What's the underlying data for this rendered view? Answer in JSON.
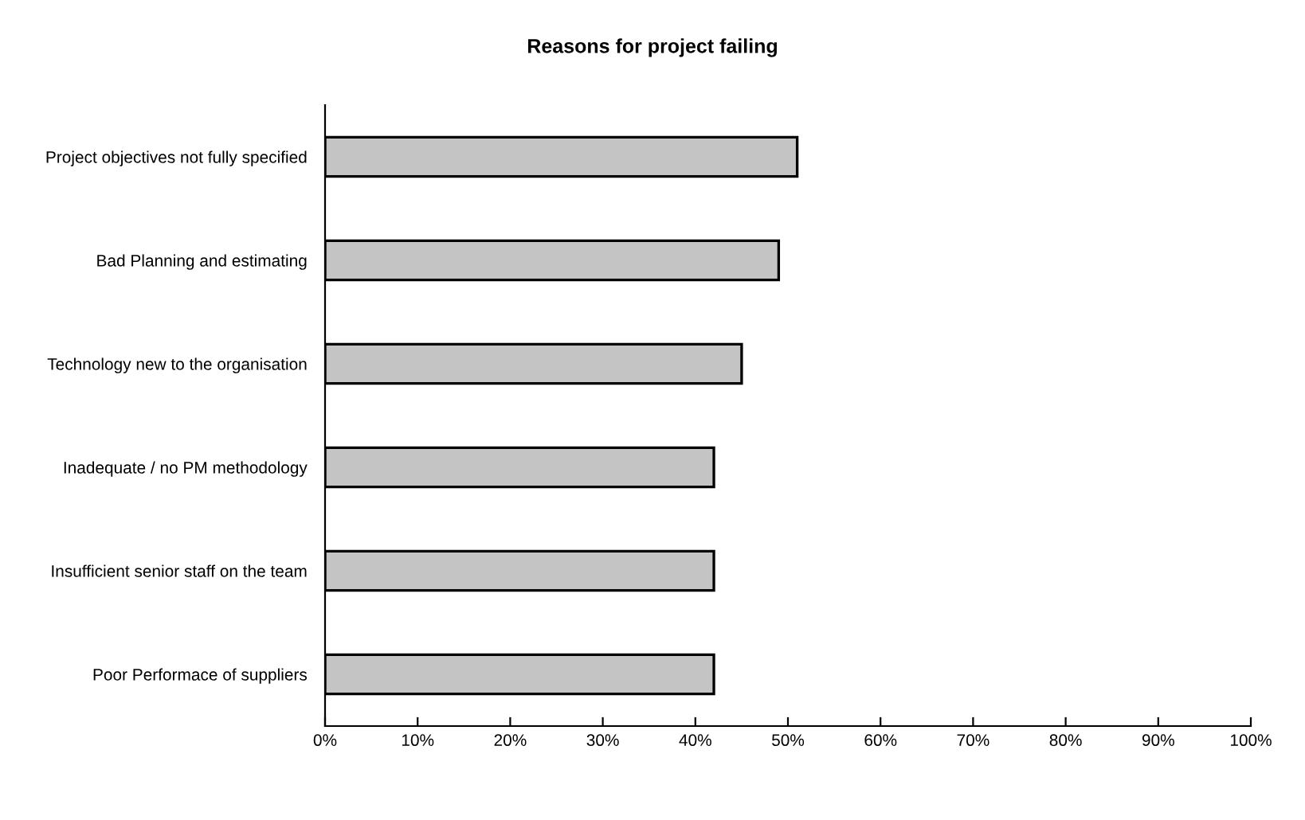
{
  "chart_data": {
    "type": "bar",
    "orientation": "horizontal",
    "title": "Reasons for project failing",
    "categories": [
      "Project objectives not fully specified",
      "Bad Planning and estimating",
      "Technology new to the organisation",
      "Inadequate / no PM methodology",
      "Insufficient senior staff on the team",
      "Poor Performace of suppliers"
    ],
    "values": [
      51,
      49,
      45,
      42,
      42,
      42
    ],
    "color": "#c4c4c4",
    "xlim": [
      0,
      100
    ],
    "xticks": [
      {
        "value": 0,
        "label": "0%"
      },
      {
        "value": 10,
        "label": "10%"
      },
      {
        "value": 20,
        "label": "20%"
      },
      {
        "value": 30,
        "label": "30%"
      },
      {
        "value": 40,
        "label": "40%"
      },
      {
        "value": 50,
        "label": "50%"
      },
      {
        "value": 60,
        "label": "60%"
      },
      {
        "value": 70,
        "label": "70%"
      },
      {
        "value": 80,
        "label": "80%"
      },
      {
        "value": 90,
        "label": "90%"
      },
      {
        "value": 100,
        "label": "100%"
      }
    ],
    "grid": false
  }
}
